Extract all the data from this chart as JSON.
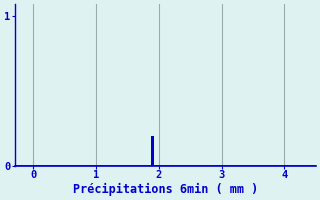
{
  "title": "",
  "xlabel": "Précipitations 6min ( mm )",
  "ylabel": "",
  "background_color": "#dff2f2",
  "bar_color": "#0000cc",
  "axis_color": "#0000cc",
  "grid_color": "#9aabab",
  "text_color": "#0000cc",
  "xlim": [
    -0.3,
    4.5
  ],
  "ylim": [
    0,
    1.08
  ],
  "xticks": [
    0,
    1,
    2,
    3,
    4
  ],
  "yticks": [
    0,
    1
  ],
  "bar_x": [
    1.9
  ],
  "bar_height": [
    0.2
  ],
  "bar_width": 0.05,
  "xlabel_fontsize": 8.5,
  "tick_fontsize": 7.5
}
